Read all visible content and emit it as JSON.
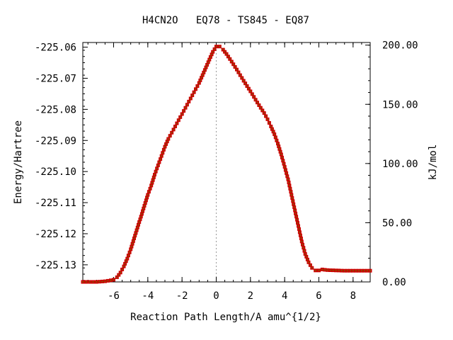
{
  "chart_data": {
    "type": "line",
    "title": "H4CN2O   EQ78 - TS845 - EQ87",
    "xlabel": "Reaction Path Length/A amu^{1/2}",
    "ylabel": "Energy/Hartree",
    "y2label": "kJ/mol",
    "xlim": [
      -7.8,
      9.0
    ],
    "ylim": [
      -225.1355,
      -225.0585
    ],
    "y2lim": [
      0,
      202.2
    ],
    "x_ticks": [
      -6,
      -4,
      -2,
      0,
      2,
      4,
      6,
      8
    ],
    "x_tick_labels": [
      "-6",
      "-4",
      "-2",
      "0",
      "2",
      "4",
      "6",
      "8"
    ],
    "y_ticks": [
      -225.06,
      -225.07,
      -225.08,
      -225.09,
      -225.1,
      -225.11,
      -225.12,
      -225.13
    ],
    "y_tick_labels": [
      "-225.06",
      "-225.07",
      "-225.08",
      "-225.09",
      "-225.10",
      "-225.11",
      "-225.12",
      "-225.13"
    ],
    "y2_ticks": [
      0,
      50,
      100,
      150,
      200
    ],
    "y2_tick_labels": [
      "0.00",
      "50.00",
      "100.00",
      "150.00",
      "200.00"
    ],
    "ts_marker_x": 0,
    "grid": false,
    "legend": "none",
    "colors": {
      "line": "#00aa00",
      "marker": "#cc0000",
      "marker_core": "#885500",
      "ts_line": "#999999",
      "axis": "#000000"
    },
    "series": [
      {
        "x": [
          -7.8,
          -7.0,
          -6.5,
          -6.0,
          -5.8,
          -5.6,
          -5.4,
          -5.2,
          -5.0,
          -4.8,
          -4.6,
          -4.4,
          -4.2,
          -4.0,
          -3.8,
          -3.6,
          -3.4,
          -3.2,
          -3.0,
          -2.8,
          -2.6,
          -2.4,
          -2.2,
          -2.0,
          -1.8,
          -1.6,
          -1.4,
          -1.2,
          -1.0,
          -0.8,
          -0.6,
          -0.4,
          -0.2,
          0.0,
          0.2,
          0.4,
          0.6,
          0.8,
          1.0,
          1.2,
          1.4,
          1.6,
          1.8,
          2.0,
          2.2,
          2.4,
          2.6,
          2.8,
          3.0,
          3.2,
          3.4,
          3.6,
          3.8,
          4.0,
          4.2,
          4.4,
          4.6,
          4.8,
          5.0,
          5.2,
          5.4,
          5.6,
          5.8,
          6.0,
          6.2,
          6.5,
          7.0,
          7.5,
          8.0,
          8.5,
          9.0
        ],
        "y": [
          -225.1355,
          -225.1355,
          -225.1353,
          -225.1348,
          -225.134,
          -225.1325,
          -225.1305,
          -225.128,
          -225.125,
          -225.1215,
          -225.118,
          -225.1145,
          -225.111,
          -225.1075,
          -225.1045,
          -225.101,
          -225.098,
          -225.095,
          -225.092,
          -225.0895,
          -225.0875,
          -225.0855,
          -225.0835,
          -225.0815,
          -225.0795,
          -225.0775,
          -225.0755,
          -225.0735,
          -225.0715,
          -225.069,
          -225.0665,
          -225.064,
          -225.0615,
          -225.0598,
          -225.0598,
          -225.0608,
          -225.0622,
          -225.0638,
          -225.0655,
          -225.0672,
          -225.069,
          -225.0708,
          -225.0725,
          -225.0742,
          -225.076,
          -225.0778,
          -225.0795,
          -225.0812,
          -225.0832,
          -225.0855,
          -225.088,
          -225.091,
          -225.0945,
          -225.0985,
          -225.1025,
          -225.1075,
          -225.1125,
          -225.1175,
          -225.1225,
          -225.1265,
          -225.1292,
          -225.131,
          -225.1318,
          -225.1318,
          -225.1315,
          -225.1317,
          -225.1318,
          -225.1319,
          -225.1319,
          -225.1319,
          -225.1319
        ]
      }
    ]
  }
}
